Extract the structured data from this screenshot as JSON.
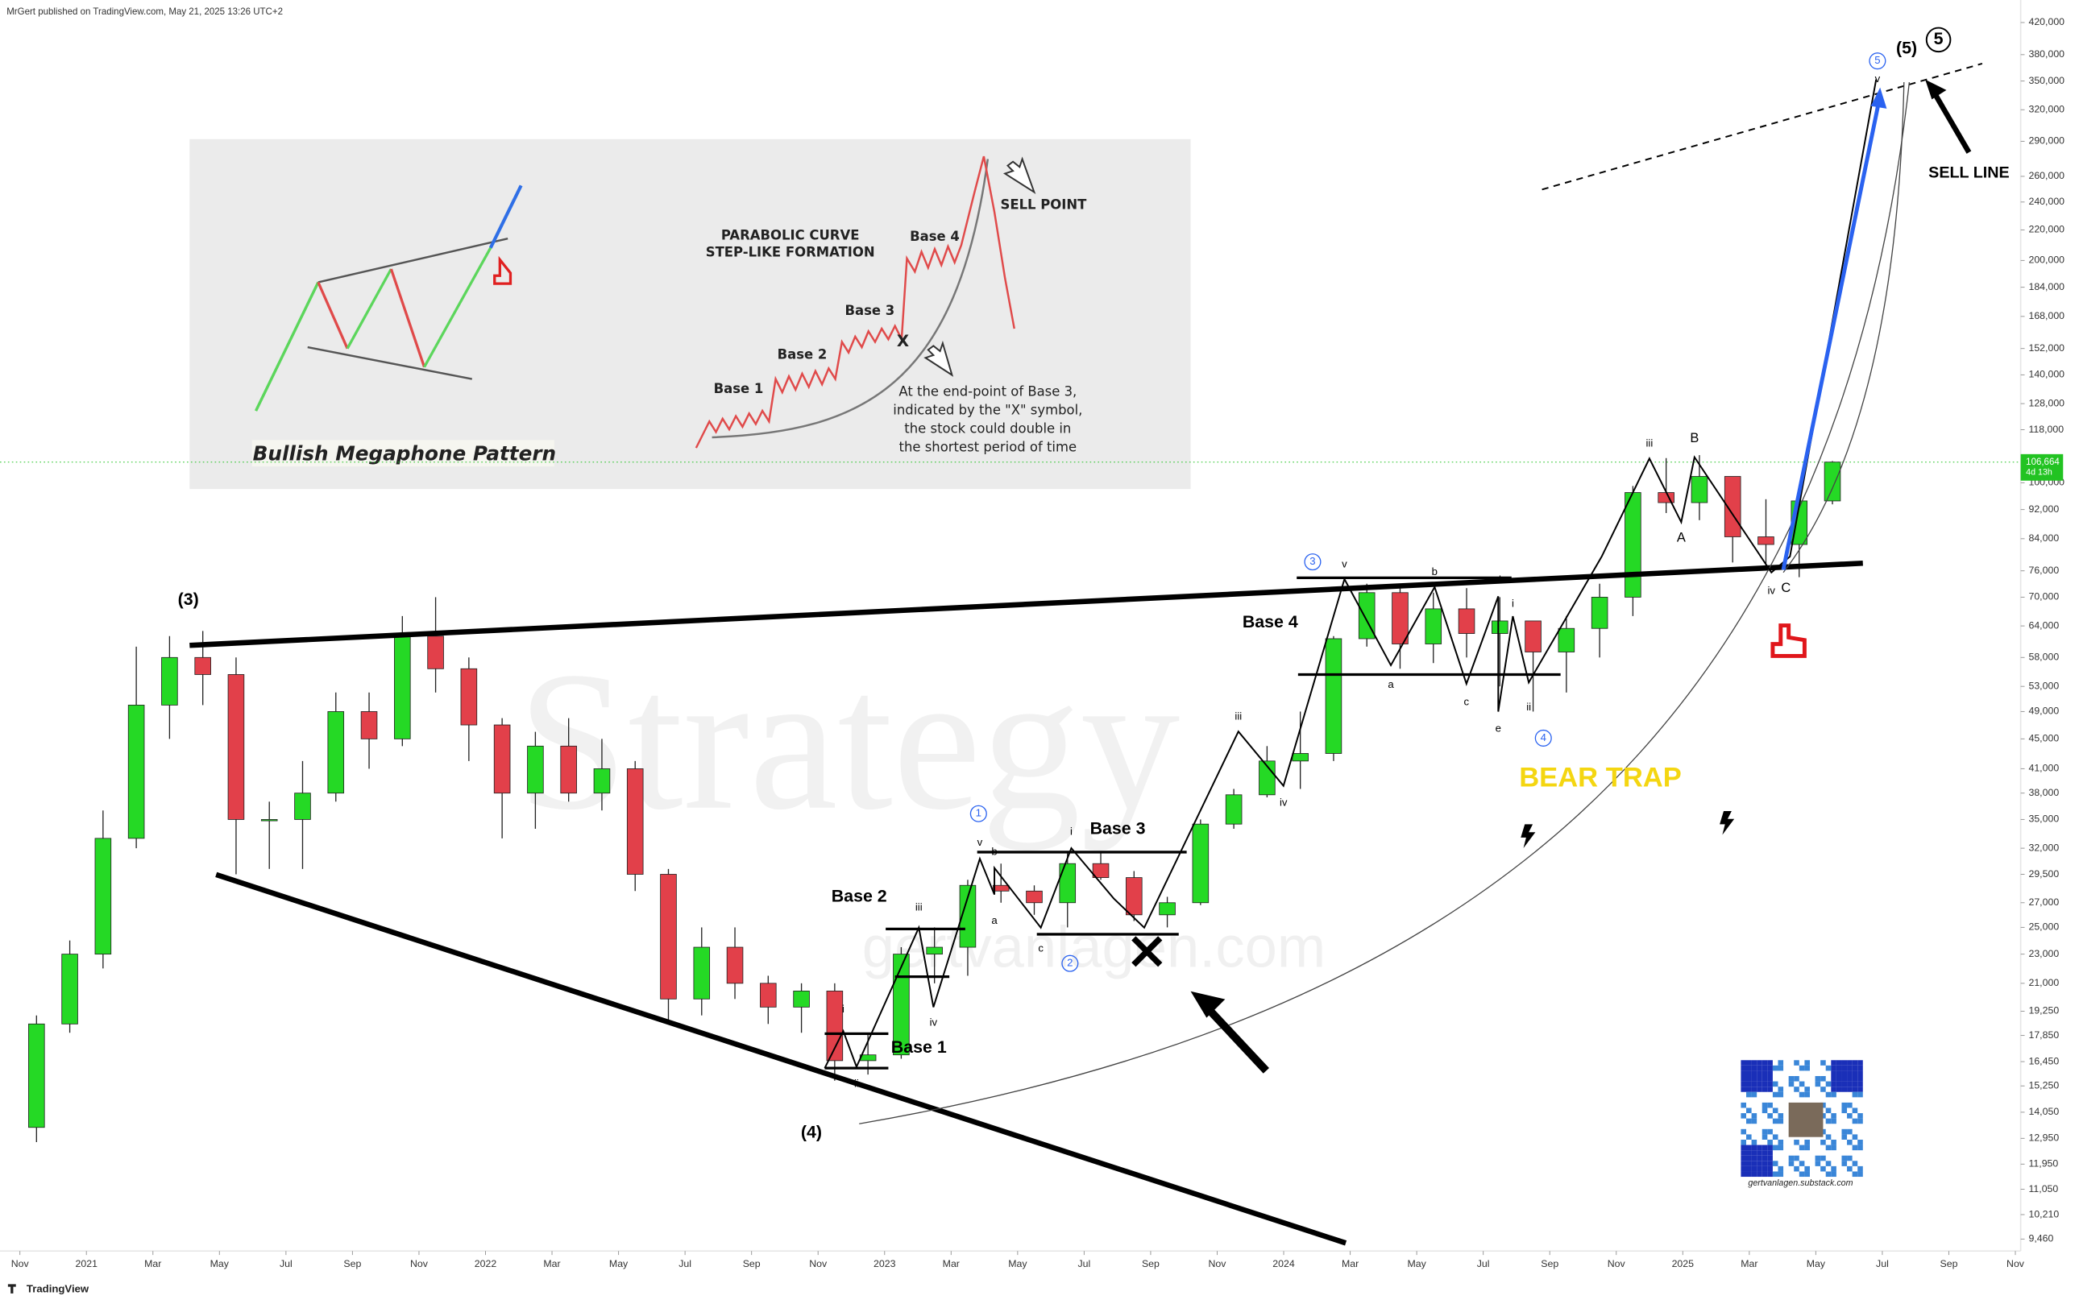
{
  "header": {
    "title": "MrGert published on TradingView.com, May 21, 2025 13:26 UTC+2"
  },
  "footer": {
    "logo": "TradingView"
  },
  "inset": {
    "pattern_label": "Bullish Megaphone Pattern",
    "curve_title": [
      "PARABOLIC CURVE",
      "STEP-LIKE FORMATION"
    ],
    "sell_point": "SELL POINT",
    "bases": [
      "Base 1",
      "Base 2",
      "Base 3",
      "Base 4"
    ],
    "x_mark": "X",
    "note": [
      "At the end-point of Base 3,",
      "indicated by the \"X\" symbol,",
      "the stock could double in",
      "the shortest period of time"
    ]
  },
  "qr_caption": "gertvanlagen.substack.com",
  "watermarks": [
    "Strategy",
    "gertvanlagen.com"
  ],
  "chart_data": {
    "type": "candlestick",
    "x": [
      "2020-11",
      "2020-12",
      "2021-01",
      "2021-02",
      "2021-03",
      "2021-04",
      "2021-05",
      "2021-06",
      "2021-07",
      "2021-08",
      "2021-09",
      "2021-10",
      "2021-11",
      "2021-12",
      "2022-01",
      "2022-02",
      "2022-03",
      "2022-04",
      "2022-05",
      "2022-06",
      "2022-07",
      "2022-08",
      "2022-09",
      "2022-10",
      "2022-11",
      "2022-12",
      "2023-01",
      "2023-02",
      "2023-03",
      "2023-04",
      "2023-05",
      "2023-06",
      "2023-07",
      "2023-08",
      "2023-09",
      "2023-10",
      "2023-11",
      "2023-12",
      "2024-01",
      "2024-02",
      "2024-03",
      "2024-04",
      "2024-05",
      "2024-06",
      "2024-07",
      "2024-08",
      "2024-09",
      "2024-10",
      "2024-11",
      "2024-12",
      "2025-01",
      "2025-02",
      "2025-03",
      "2025-04",
      "2025-05"
    ],
    "open": [
      13400,
      18500,
      23000,
      33000,
      50000,
      58000,
      55000,
      35000,
      35000,
      38000,
      49000,
      45000,
      62000,
      56000,
      47000,
      38000,
      44000,
      38000,
      41000,
      29500,
      20000,
      23500,
      21000,
      19500,
      20500,
      16500,
      16800,
      23000,
      23500,
      28500,
      28000,
      27000,
      30500,
      29200,
      26000,
      27000,
      34500,
      37800,
      42000,
      43000,
      61500,
      71000,
      60500,
      67500,
      62500,
      65000,
      59000,
      63500,
      70000,
      97000,
      94000,
      102000,
      84500,
      82500,
      94500
    ],
    "high": [
      19000,
      24000,
      36000,
      60000,
      62000,
      63000,
      58000,
      37000,
      42000,
      52000,
      52000,
      66000,
      70000,
      58000,
      48000,
      46000,
      48000,
      45000,
      42000,
      30000,
      25000,
      25000,
      21500,
      21000,
      21000,
      18000,
      23500,
      25000,
      29000,
      30500,
      28500,
      31500,
      31500,
      29800,
      27500,
      35000,
      38500,
      44000,
      49000,
      62000,
      73000,
      72000,
      71000,
      72000,
      70000,
      65000,
      66000,
      73000,
      99000,
      108000,
      109000,
      102000,
      95000,
      95500,
      107000
    ],
    "low": [
      12800,
      18000,
      22000,
      32000,
      45000,
      50000,
      29500,
      30000,
      30000,
      37000,
      41000,
      44000,
      52000,
      42000,
      33000,
      34000,
      37000,
      36000,
      28000,
      18500,
      19000,
      20000,
      18500,
      18000,
      15500,
      15800,
      16600,
      21000,
      21500,
      27000,
      26000,
      25000,
      29000,
      25500,
      25000,
      26800,
      34000,
      37500,
      38500,
      42000,
      60000,
      56000,
      57000,
      58000,
      53000,
      49000,
      52000,
      58000,
      66000,
      91000,
      89000,
      78000,
      77000,
      74500,
      93500
    ],
    "close": [
      18500,
      23000,
      33000,
      50000,
      58000,
      55000,
      35000,
      35000,
      38000,
      49000,
      45000,
      62000,
      56000,
      47000,
      38000,
      44000,
      38000,
      41000,
      29500,
      20000,
      23500,
      21000,
      19500,
      20500,
      16500,
      16800,
      23000,
      23500,
      28500,
      28000,
      27000,
      30500,
      29200,
      26000,
      27000,
      34500,
      37800,
      42000,
      43000,
      61500,
      71000,
      60500,
      67500,
      62500,
      65000,
      59000,
      63500,
      70000,
      97000,
      94000,
      102000,
      84500,
      82500,
      94500,
      106664
    ],
    "up_color": "#25d925",
    "down_color": "#e2404a",
    "log_scale": true,
    "grid": false,
    "xlim": [
      "2020-11",
      "2025-11"
    ],
    "xticks": [
      {
        "value": "2020-11",
        "label": "Nov"
      },
      {
        "value": "2021-01",
        "label": "2021"
      },
      {
        "value": "2021-03",
        "label": "Mar"
      },
      {
        "value": "2021-05",
        "label": "May"
      },
      {
        "value": "2021-07",
        "label": "Jul"
      },
      {
        "value": "2021-09",
        "label": "Sep"
      },
      {
        "value": "2021-11",
        "label": "Nov"
      },
      {
        "value": "2022-01",
        "label": "2022"
      },
      {
        "value": "2022-03",
        "label": "Mar"
      },
      {
        "value": "2022-05",
        "label": "May"
      },
      {
        "value": "2022-07",
        "label": "Jul"
      },
      {
        "value": "2022-09",
        "label": "Sep"
      },
      {
        "value": "2022-11",
        "label": "Nov"
      },
      {
        "value": "2023-01",
        "label": "2023"
      },
      {
        "value": "2023-03",
        "label": "Mar"
      },
      {
        "value": "2023-05",
        "label": "May"
      },
      {
        "value": "2023-07",
        "label": "Jul"
      },
      {
        "value": "2023-09",
        "label": "Sep"
      },
      {
        "value": "2023-11",
        "label": "Nov"
      },
      {
        "value": "2024-01",
        "label": "2024"
      },
      {
        "value": "2024-03",
        "label": "Mar"
      },
      {
        "value": "2024-05",
        "label": "May"
      },
      {
        "value": "2024-07",
        "label": "Jul"
      },
      {
        "value": "2024-09",
        "label": "Sep"
      },
      {
        "value": "2024-11",
        "label": "Nov"
      },
      {
        "value": "2025-01",
        "label": "2025"
      },
      {
        "value": "2025-03",
        "label": "Mar"
      },
      {
        "value": "2025-05",
        "label": "May"
      },
      {
        "value": "2025-07",
        "label": "Jul"
      },
      {
        "value": "2025-09",
        "label": "Sep"
      },
      {
        "value": "2025-11",
        "label": "Nov"
      }
    ],
    "ylim": [
      9460,
      420000
    ],
    "yticks": [
      {
        "value": 420000,
        "label": "420,000"
      },
      {
        "value": 380000,
        "label": "380,000"
      },
      {
        "value": 350000,
        "label": "350,000"
      },
      {
        "value": 320000,
        "label": "320,000"
      },
      {
        "value": 290000,
        "label": "290,000"
      },
      {
        "value": 260000,
        "label": "260,000"
      },
      {
        "value": 240000,
        "label": "240,000"
      },
      {
        "value": 220000,
        "label": "220,000"
      },
      {
        "value": 200000,
        "label": "200,000"
      },
      {
        "value": 184000,
        "label": "184,000"
      },
      {
        "value": 168000,
        "label": "168,000"
      },
      {
        "value": 152000,
        "label": "152,000"
      },
      {
        "value": 140000,
        "label": "140,000"
      },
      {
        "value": 128000,
        "label": "128,000"
      },
      {
        "value": 118000,
        "label": "118,000"
      },
      {
        "value": 100000,
        "label": "100,000"
      },
      {
        "value": 92000,
        "label": "92,000"
      },
      {
        "value": 84000,
        "label": "84,000"
      },
      {
        "value": 76000,
        "label": "76,000"
      },
      {
        "value": 70000,
        "label": "70,000"
      },
      {
        "value": 64000,
        "label": "64,000"
      },
      {
        "value": 58000,
        "label": "58,000"
      },
      {
        "value": 53000,
        "label": "53,000"
      },
      {
        "value": 49000,
        "label": "49,000"
      },
      {
        "value": 45000,
        "label": "45,000"
      },
      {
        "value": 41000,
        "label": "41,000"
      },
      {
        "value": 38000,
        "label": "38,000"
      },
      {
        "value": 35000,
        "label": "35,000"
      },
      {
        "value": 32000,
        "label": "32,000"
      },
      {
        "value": 29500,
        "label": "29,500"
      },
      {
        "value": 27000,
        "label": "27,000"
      },
      {
        "value": 25000,
        "label": "25,000"
      },
      {
        "value": 23000,
        "label": "23,000"
      },
      {
        "value": 21000,
        "label": "21,000"
      },
      {
        "value": 19250,
        "label": "19,250"
      },
      {
        "value": 17850,
        "label": "17,850"
      },
      {
        "value": 16450,
        "label": "16,450"
      },
      {
        "value": 15250,
        "label": "15,250"
      },
      {
        "value": 14050,
        "label": "14,050"
      },
      {
        "value": 12950,
        "label": "12,950"
      },
      {
        "value": 11950,
        "label": "11,950"
      },
      {
        "value": 11050,
        "label": "11,050"
      },
      {
        "value": 10210,
        "label": "10,210"
      },
      {
        "value": 9460,
        "label": "9,460"
      }
    ],
    "last_price": {
      "value": 106664,
      "label": "106,664",
      "countdown": "4d 13h",
      "color": "#22c322"
    },
    "annotations": [
      "(3)",
      "(4)",
      "(5)",
      "5",
      "5",
      "v",
      "Base 1",
      "Base 2",
      "Base 3",
      "Base 4",
      "i",
      "ii",
      "iii",
      "iv",
      "v",
      "a",
      "b",
      "c",
      "i",
      "1",
      "2",
      "iii",
      "iv",
      "3",
      "v",
      "a",
      "b",
      "c",
      "d",
      "e",
      "i",
      "ii",
      "4",
      "iii",
      "B",
      "A",
      "iv",
      "C",
      "BEAR TRAP",
      "SELL LINE"
    ]
  }
}
